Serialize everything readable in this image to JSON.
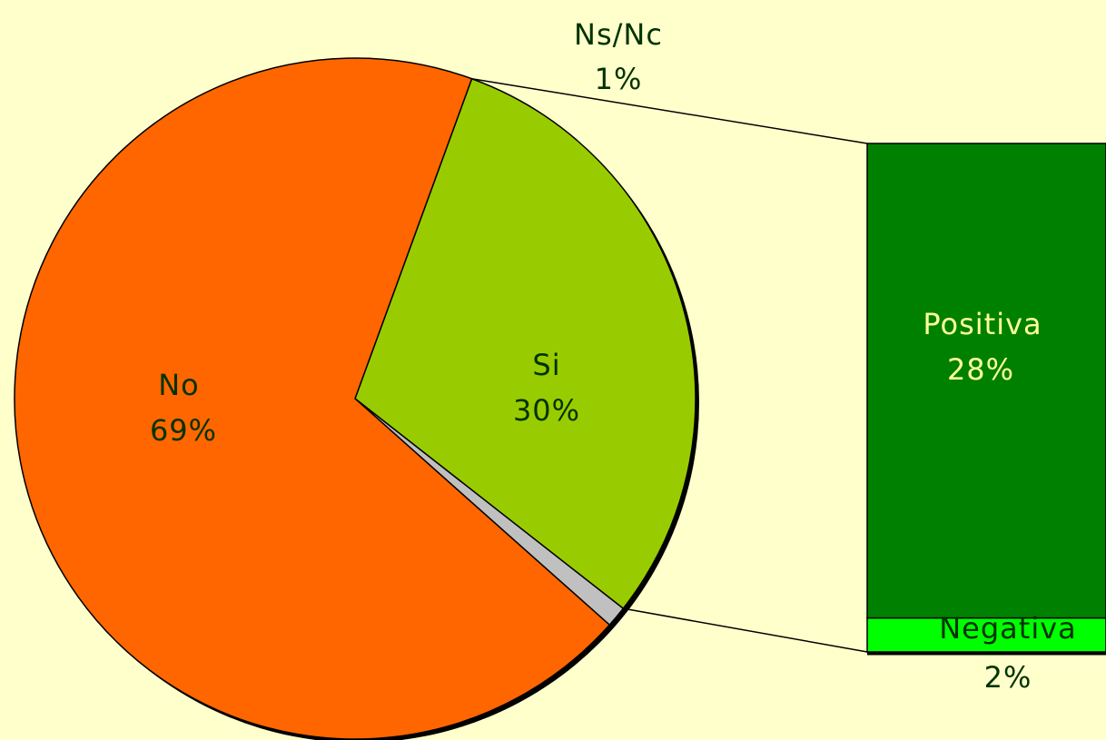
{
  "chart_data": {
    "type": "pie",
    "pie": {
      "slices": [
        {
          "label": "Si",
          "value": 30,
          "value_label": "30%",
          "color": "#99CC00"
        },
        {
          "label": "Ns/Nc",
          "value": 1,
          "value_label": "1%",
          "color": "#C0C0C0"
        },
        {
          "label": "No",
          "value": 69,
          "value_label": "69%",
          "color": "#FF6600"
        }
      ]
    },
    "breakdown": {
      "of": "Si",
      "type": "stacked-bar",
      "segments": [
        {
          "label": "Positiva",
          "value": 28,
          "value_label": "28%",
          "color": "#008000"
        },
        {
          "label": "Negativa",
          "value": 2,
          "value_label": "2%",
          "color": "#00FF00"
        }
      ]
    },
    "colors": {
      "background": "#FFFFCC",
      "outline": "#000000",
      "label_dark": "#003300",
      "label_light": "#FFFF99"
    }
  }
}
